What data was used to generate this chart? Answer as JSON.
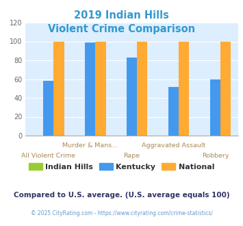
{
  "title_line1": "2019 Indian Hills",
  "title_line2": "Violent Crime Comparison",
  "title_color": "#3399cc",
  "categories": [
    "All Violent Crime",
    "Murder & Mans...",
    "Rape",
    "Aggravated Assault",
    "Robbery"
  ],
  "indian_hills": [
    0,
    0,
    0,
    0,
    0
  ],
  "kentucky": [
    58,
    99,
    83,
    52,
    60
  ],
  "national": [
    100,
    100,
    100,
    100,
    100
  ],
  "colors": {
    "indian_hills": "#99cc33",
    "kentucky": "#4499ee",
    "national": "#ffaa33"
  },
  "ylim": [
    0,
    120
  ],
  "yticks": [
    0,
    20,
    40,
    60,
    80,
    100,
    120
  ],
  "plot_bg": "#ddeeff",
  "legend_labels": [
    "Indian Hills",
    "Kentucky",
    "National"
  ],
  "footer_text": "Compared to U.S. average. (U.S. average equals 100)",
  "footer_color": "#333366",
  "copyright_text": "© 2025 CityRating.com - https://www.cityrating.com/crime-statistics/",
  "copyright_color": "#6699cc",
  "xlabel_color": "#aa8855",
  "label_row1": [
    "",
    "Murder & Mans...",
    "",
    "Aggravated Assault",
    ""
  ],
  "label_row2": [
    "All Violent Crime",
    "",
    "Rape",
    "",
    "Robbery"
  ]
}
